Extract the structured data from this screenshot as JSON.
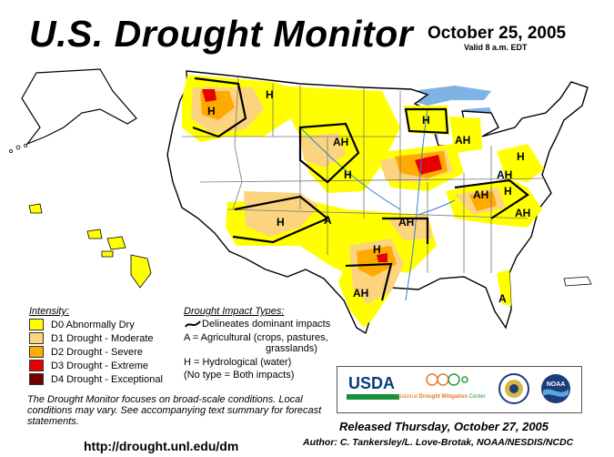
{
  "header": {
    "title": "U.S. Drought Monitor",
    "date": "October 25, 2005",
    "valid": "Valid 8 a.m. EDT"
  },
  "map": {
    "region_labels": [
      "H",
      "H",
      "H",
      "AH",
      "H",
      "H",
      "H",
      "AH",
      "H",
      "A",
      "AH",
      "AH",
      "AH",
      "H",
      "AH",
      "AH",
      "A"
    ],
    "colors": {
      "water": "#7fb2e5",
      "state_line": "#777777",
      "county_line": "#cccccc",
      "river": "#3a7ed8",
      "impact_line": "#000000"
    }
  },
  "legend": {
    "intensity_title": "Intensity:",
    "levels": [
      {
        "label": "D0 Abnormally Dry",
        "color": "#ffff00"
      },
      {
        "label": "D1 Drought - Moderate",
        "color": "#fcd37f"
      },
      {
        "label": "D2 Drought - Severe",
        "color": "#ffaa00"
      },
      {
        "label": "D3 Drought - Extreme",
        "color": "#e60000"
      },
      {
        "label": "D4 Drought - Exceptional",
        "color": "#730000"
      }
    ],
    "impact_title": "Drought Impact Types:",
    "impact_lines": [
      "Delineates dominant impacts",
      "A = Agricultural (crops, pastures,",
      "grasslands)",
      "H = Hydrological (water)",
      "(No type = Both impacts)"
    ]
  },
  "footer": {
    "note": "The Drought Monitor focuses on broad-scale conditions. Local conditions may vary.  See accompanying text summary for forecast statements.",
    "url": "http://drought.unl.edu/dm",
    "released": "Released Thursday, October 27, 2005",
    "author": "Author: C. Tankersley/L. Love-Brotak, NOAA/NESDIS/NCDC"
  },
  "logos": {
    "usda": "USDA",
    "ndmc_prefix": "National",
    "ndmc_mid": " Drought Mitigation ",
    "ndmc_suffix": "Center",
    "noaa": "NOAA"
  }
}
